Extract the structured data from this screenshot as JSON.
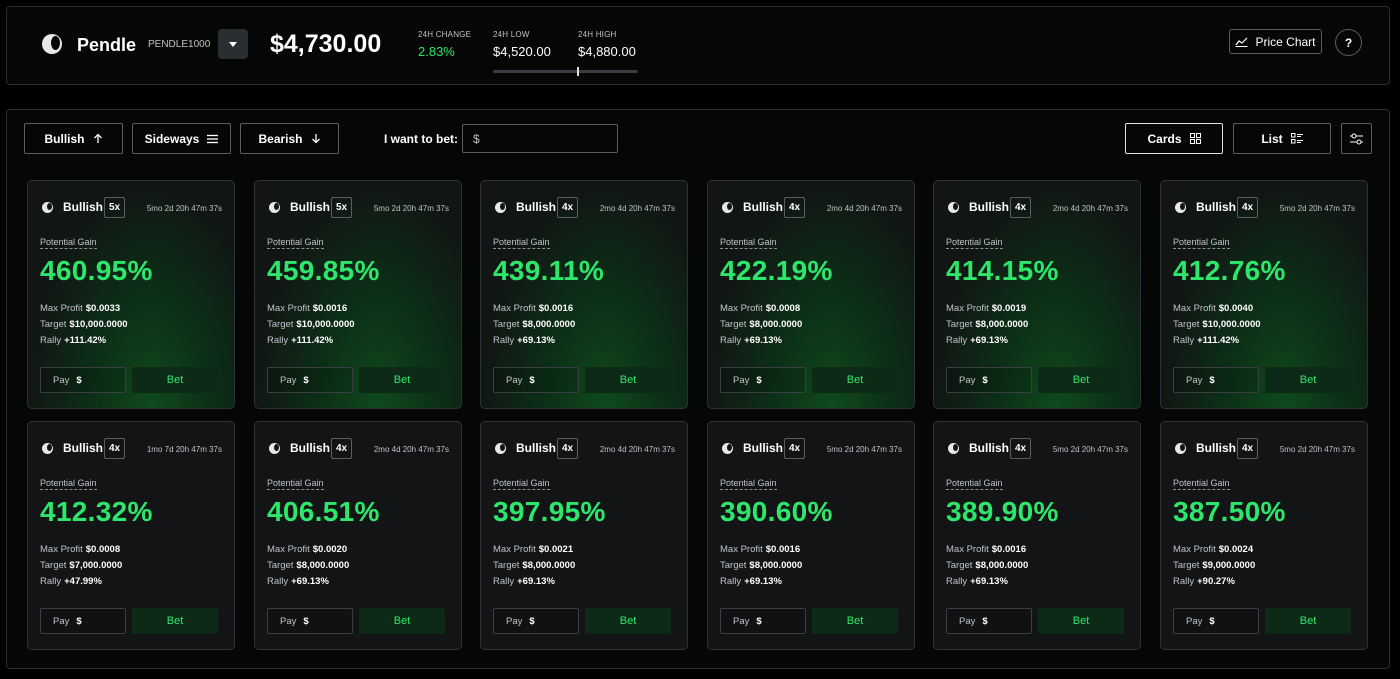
{
  "header": {
    "token_name": "Pendle",
    "token_symbol": "PENDLE1000",
    "price": "$4,730.00",
    "change_label": "24H CHANGE",
    "change_value": "2.83%",
    "low_label": "24H LOW",
    "low_value": "$4,520.00",
    "high_label": "24H HIGH",
    "high_value": "$4,880.00",
    "range_position_percent": 58,
    "price_chart_label": "Price Chart",
    "help_label": "?"
  },
  "toolbar": {
    "bullish_label": "Bullish",
    "sideways_label": "Sideways",
    "bearish_label": "Bearish",
    "bet_label": "I want to bet:",
    "bet_currency": "$",
    "bet_value": "",
    "cards_label": "Cards",
    "list_label": "List",
    "selected_view": "Cards"
  },
  "card_labels": {
    "potential_gain": "Potential Gain",
    "max_profit": "Max Profit",
    "target": "Target",
    "rally": "Rally",
    "pay": "Pay",
    "currency": "$",
    "bet": "Bet"
  },
  "cards": [
    {
      "direction": "Bullish",
      "leverage": "5x",
      "time": "5mo 2d 20h 47m 37s",
      "gain": "460.95%",
      "max_profit": "$0.0033",
      "target": "$10,000.0000",
      "rally": "+111.42%",
      "highlight": true
    },
    {
      "direction": "Bullish",
      "leverage": "5x",
      "time": "5mo 2d 20h 47m 37s",
      "gain": "459.85%",
      "max_profit": "$0.0016",
      "target": "$10,000.0000",
      "rally": "+111.42%",
      "highlight": true
    },
    {
      "direction": "Bullish",
      "leverage": "4x",
      "time": "2mo 4d 20h 47m 37s",
      "gain": "439.11%",
      "max_profit": "$0.0016",
      "target": "$8,000.0000",
      "rally": "+69.13%",
      "highlight": true
    },
    {
      "direction": "Bullish",
      "leverage": "4x",
      "time": "2mo 4d 20h 47m 37s",
      "gain": "422.19%",
      "max_profit": "$0.0008",
      "target": "$8,000.0000",
      "rally": "+69.13%",
      "highlight": true
    },
    {
      "direction": "Bullish",
      "leverage": "4x",
      "time": "2mo 4d 20h 47m 37s",
      "gain": "414.15%",
      "max_profit": "$0.0019",
      "target": "$8,000.0000",
      "rally": "+69.13%",
      "highlight": true
    },
    {
      "direction": "Bullish",
      "leverage": "4x",
      "time": "5mo 2d 20h 47m 37s",
      "gain": "412.76%",
      "max_profit": "$0.0040",
      "target": "$10,000.0000",
      "rally": "+111.42%",
      "highlight": true
    },
    {
      "direction": "Bullish",
      "leverage": "4x",
      "time": "1mo 7d 20h 47m 37s",
      "gain": "412.32%",
      "max_profit": "$0.0008",
      "target": "$7,000.0000",
      "rally": "+47.99%",
      "highlight": false
    },
    {
      "direction": "Bullish",
      "leverage": "4x",
      "time": "2mo 4d 20h 47m 37s",
      "gain": "406.51%",
      "max_profit": "$0.0020",
      "target": "$8,000.0000",
      "rally": "+69.13%",
      "highlight": false
    },
    {
      "direction": "Bullish",
      "leverage": "4x",
      "time": "2mo 4d 20h 47m 37s",
      "gain": "397.95%",
      "max_profit": "$0.0021",
      "target": "$8,000.0000",
      "rally": "+69.13%",
      "highlight": false
    },
    {
      "direction": "Bullish",
      "leverage": "4x",
      "time": "5mo 2d 20h 47m 37s",
      "gain": "390.60%",
      "max_profit": "$0.0016",
      "target": "$8,000.0000",
      "rally": "+69.13%",
      "highlight": false
    },
    {
      "direction": "Bullish",
      "leverage": "4x",
      "time": "5mo 2d 20h 47m 37s",
      "gain": "389.90%",
      "max_profit": "$0.0016",
      "target": "$8,000.0000",
      "rally": "+69.13%",
      "highlight": false
    },
    {
      "direction": "Bullish",
      "leverage": "4x",
      "time": "5mo 2d 20h 47m 37s",
      "gain": "387.50%",
      "max_profit": "$0.0024",
      "target": "$9,000.0000",
      "rally": "+90.27%",
      "highlight": false
    }
  ],
  "colors": {
    "accent_green": "#2ee66b",
    "background": "#000000",
    "card_background": "#121416"
  }
}
